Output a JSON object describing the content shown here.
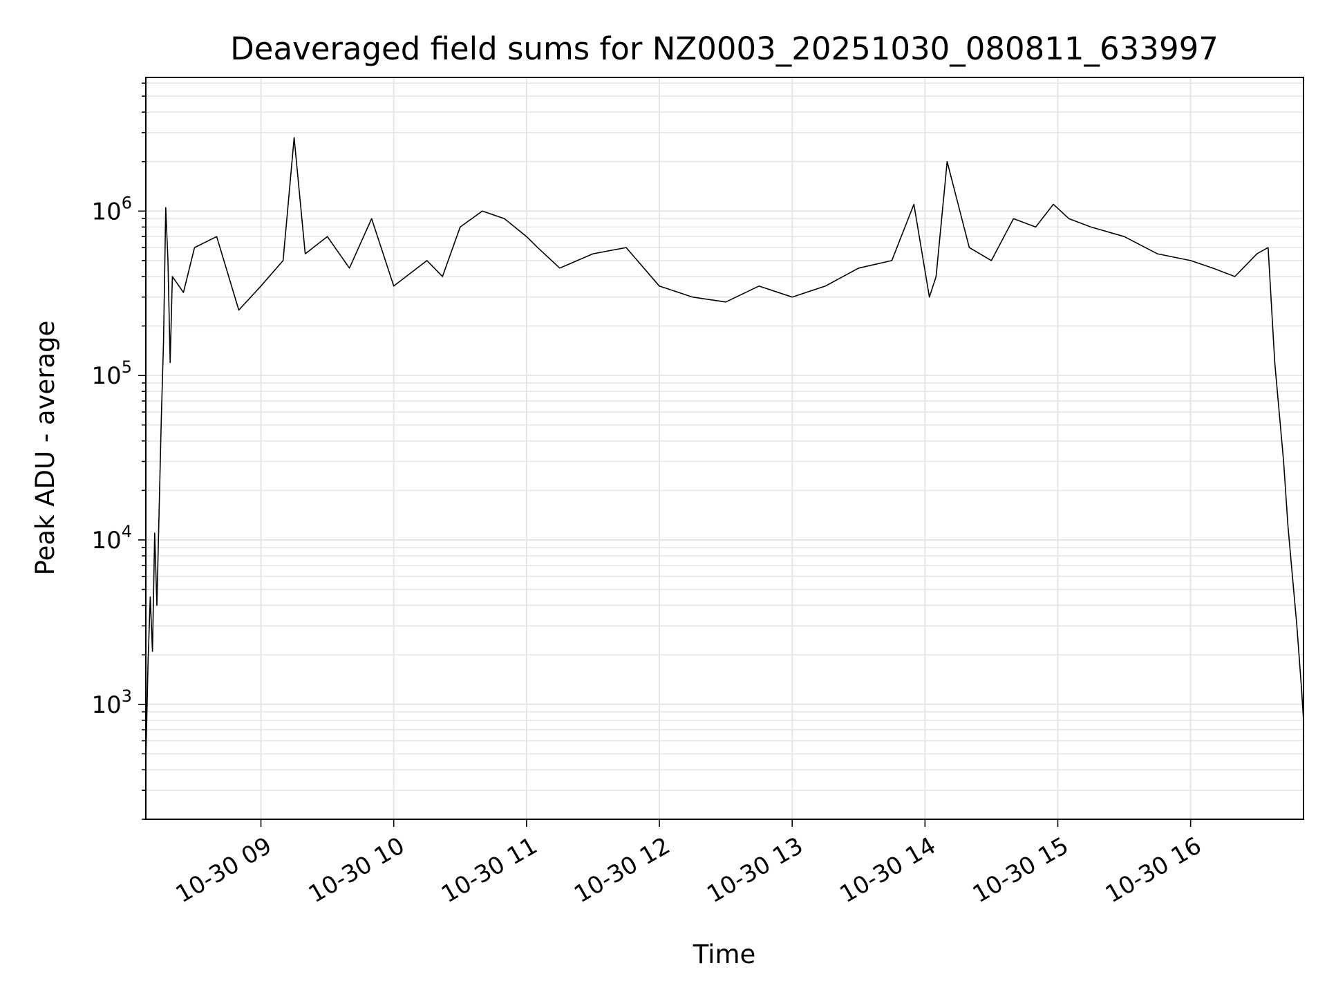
{
  "chart_data": {
    "type": "line",
    "title": "Deaveraged field sums for NZ0003_20251030_080811_633997",
    "xlabel": "Time",
    "ylabel": "Peak ADU - average",
    "yscale": "log",
    "grid": true,
    "line_color": "#000000",
    "grid_color": "#e6e6e6",
    "x_range": [
      "10-30 08:08",
      "10-30 16:51"
    ],
    "ylim": [
      200,
      6500000
    ],
    "x_ticks": [
      {
        "label": "10-30 09",
        "hour": 9
      },
      {
        "label": "10-30 10",
        "hour": 10
      },
      {
        "label": "10-30 11",
        "hour": 11
      },
      {
        "label": "10-30 12",
        "hour": 12
      },
      {
        "label": "10-30 13",
        "hour": 13
      },
      {
        "label": "10-30 14",
        "hour": 14
      },
      {
        "label": "10-30 15",
        "hour": 15
      },
      {
        "label": "10-30 16",
        "hour": 16
      }
    ],
    "y_ticks": [
      {
        "base": "10",
        "exp": "3",
        "value": 1000
      },
      {
        "base": "10",
        "exp": "4",
        "value": 10000
      },
      {
        "base": "10",
        "exp": "5",
        "value": 100000
      },
      {
        "base": "10",
        "exp": "6",
        "value": 1000000
      }
    ],
    "series": [
      {
        "x": [
          "10-30 08:08",
          "10-30 08:09",
          "10-30 08:10",
          "10-30 08:11",
          "10-30 08:12",
          "10-30 08:13",
          "10-30 08:14",
          "10-30 08:15",
          "10-30 08:16",
          "10-30 08:17",
          "10-30 08:18",
          "10-30 08:19",
          "10-30 08:20",
          "10-30 08:25",
          "10-30 08:30",
          "10-30 08:40",
          "10-30 08:50",
          "10-30 09:00",
          "10-30 09:10",
          "10-30 09:15",
          "10-30 09:20",
          "10-30 09:30",
          "10-30 09:40",
          "10-30 09:50",
          "10-30 10:00",
          "10-30 10:15",
          "10-30 10:22",
          "10-30 10:30",
          "10-30 10:40",
          "10-30 10:50",
          "10-30 11:00",
          "10-30 11:05",
          "10-30 11:15",
          "10-30 11:30",
          "10-30 11:45",
          "10-30 12:00",
          "10-30 12:15",
          "10-30 12:30",
          "10-30 12:45",
          "10-30 13:00",
          "10-30 13:15",
          "10-30 13:30",
          "10-30 13:45",
          "10-30 13:55",
          "10-30 14:02",
          "10-30 14:05",
          "10-30 14:10",
          "10-30 14:20",
          "10-30 14:30",
          "10-30 14:40",
          "10-30 14:50",
          "10-30 14:58",
          "10-30 15:05",
          "10-30 15:15",
          "10-30 15:30",
          "10-30 15:45",
          "10-30 16:00",
          "10-30 16:10",
          "10-30 16:20",
          "10-30 16:30",
          "10-30 16:35",
          "10-30 16:38",
          "10-30 16:40",
          "10-30 16:42",
          "10-30 16:44",
          "10-30 16:46",
          "10-30 16:48",
          "10-30 16:50",
          "10-30 16:51"
        ],
        "y": [
          450,
          1800,
          4500,
          2100,
          11000,
          4000,
          15000,
          55000,
          160000,
          1050000,
          500000,
          120000,
          400000,
          320000,
          600000,
          700000,
          250000,
          350000,
          500000,
          2800000,
          550000,
          700000,
          450000,
          900000,
          350000,
          500000,
          400000,
          800000,
          1000000,
          900000,
          700000,
          600000,
          450000,
          550000,
          600000,
          350000,
          300000,
          280000,
          350000,
          300000,
          350000,
          450000,
          500000,
          1100000,
          300000,
          400000,
          2000000,
          600000,
          500000,
          900000,
          800000,
          1100000,
          900000,
          800000,
          700000,
          550000,
          500000,
          450000,
          400000,
          550000,
          600000,
          120000,
          60000,
          30000,
          12000,
          6000,
          3000,
          1300,
          800
        ]
      }
    ]
  }
}
